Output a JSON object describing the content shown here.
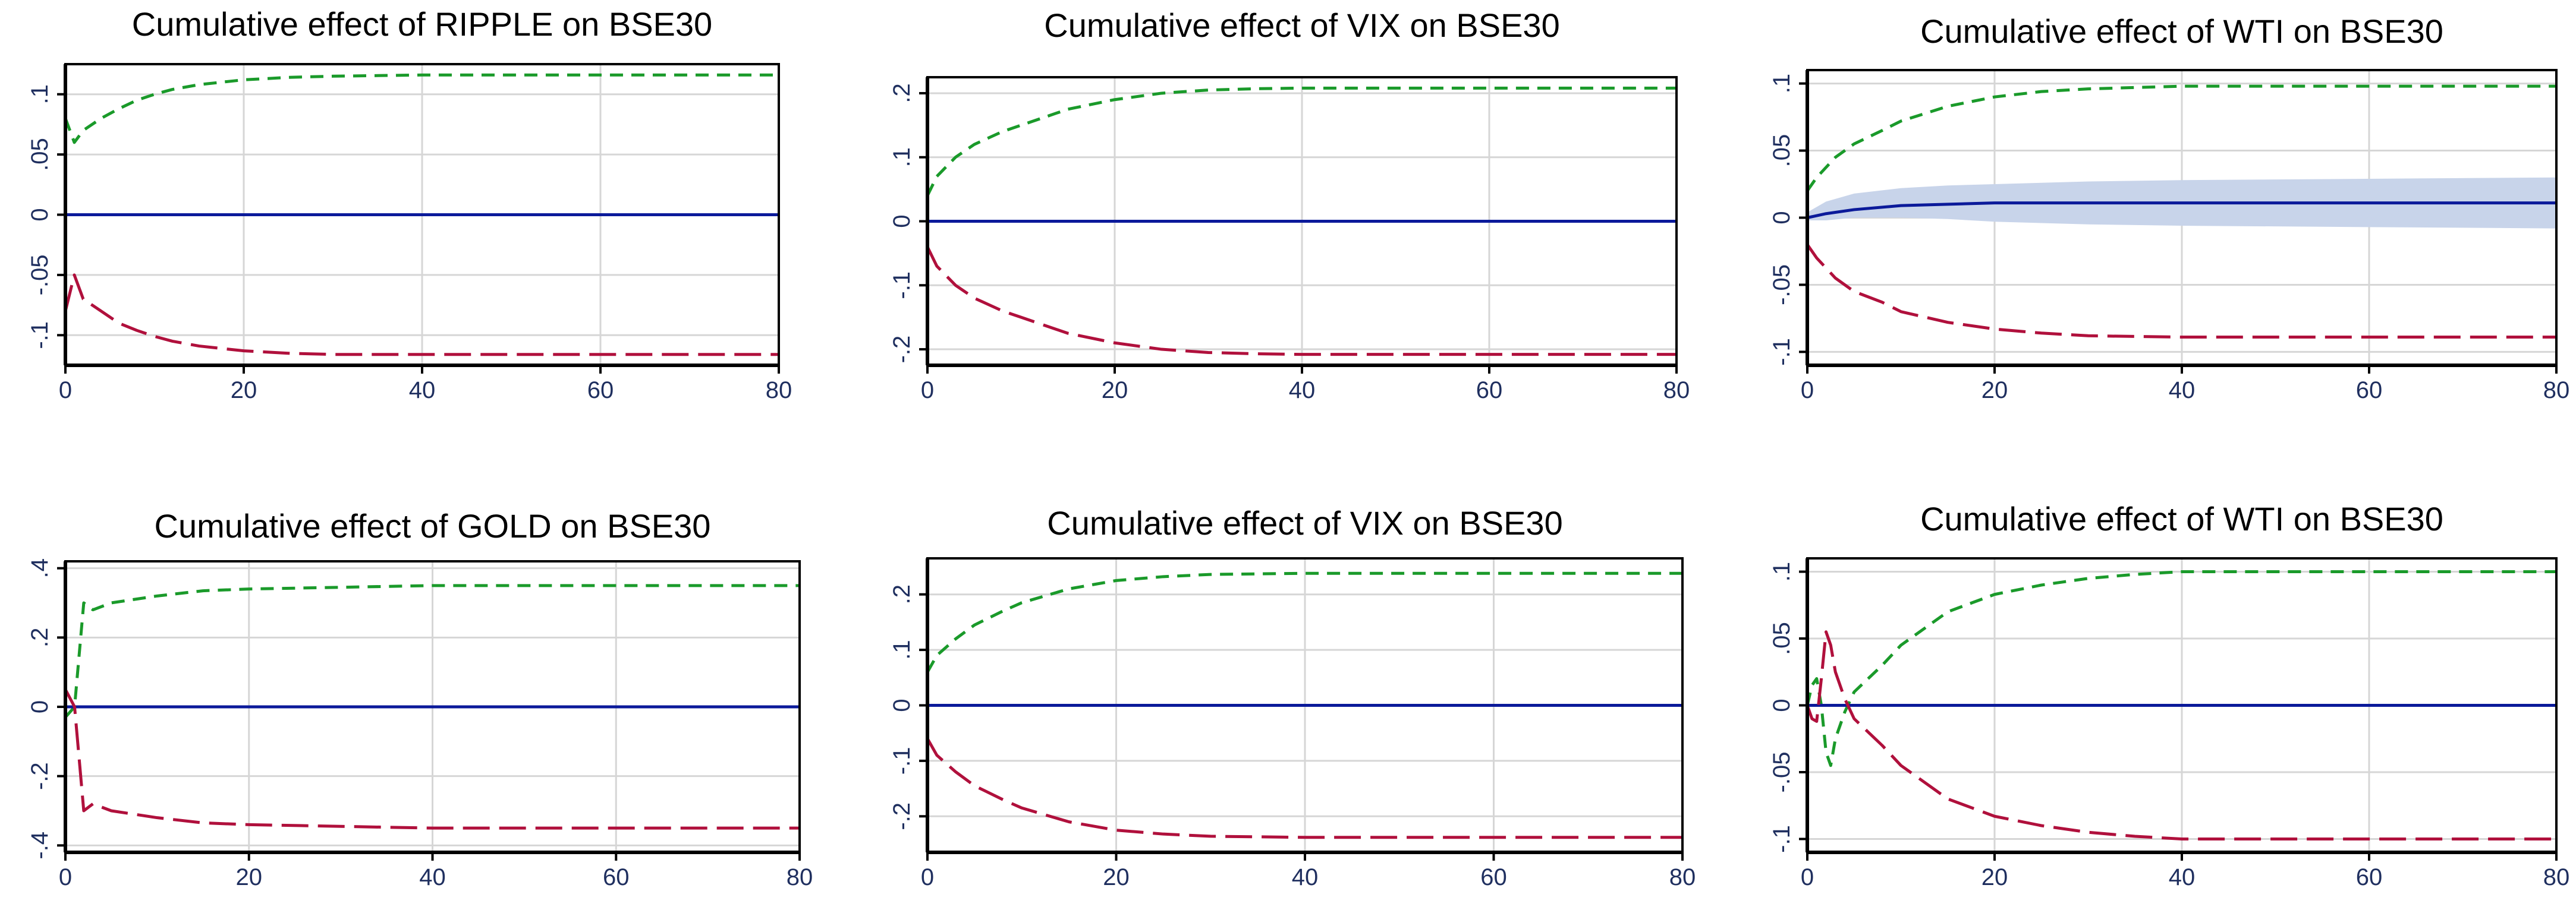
{
  "colors": {
    "estimate": "#0b1a9a",
    "upper_band": "#1a9a2a",
    "lower_band": "#b0103c",
    "shaded_ci": "#c8d4ea",
    "grid": "#d6d6d6"
  },
  "chart_data": [
    {
      "type": "line",
      "title": "Cumulative effect of RIPPLE on BSE30",
      "xlim": [
        0,
        80
      ],
      "ylim": [
        -0.125,
        0.125
      ],
      "xticks": [
        0,
        20,
        40,
        60,
        80
      ],
      "xtick_labels": [
        "0",
        "20",
        "40",
        "60",
        "80"
      ],
      "yticks": [
        0.1,
        0.05,
        0,
        -0.05,
        -0.1
      ],
      "ytick_labels": [
        ".1",
        ".05",
        "0",
        "-.05",
        "-.1"
      ],
      "grid": true,
      "shaded_band": false,
      "series": [
        {
          "role": "upper",
          "style": "dashed",
          "x": [
            0,
            1,
            2,
            4,
            6,
            8,
            10,
            12,
            15,
            20,
            25,
            30,
            40,
            60,
            80
          ],
          "y": [
            0.08,
            0.06,
            0.07,
            0.08,
            0.088,
            0.095,
            0.1,
            0.104,
            0.108,
            0.112,
            0.114,
            0.115,
            0.116,
            0.116,
            0.116
          ]
        },
        {
          "role": "estimate",
          "style": "solid",
          "x": [
            0,
            80
          ],
          "y": [
            0,
            0
          ]
        },
        {
          "role": "lower",
          "style": "dashed",
          "x": [
            0,
            1,
            2,
            4,
            6,
            8,
            10,
            12,
            15,
            20,
            25,
            30,
            40,
            60,
            80
          ],
          "y": [
            -0.08,
            -0.05,
            -0.07,
            -0.08,
            -0.09,
            -0.096,
            -0.101,
            -0.105,
            -0.109,
            -0.113,
            -0.115,
            -0.116,
            -0.116,
            -0.116,
            -0.116
          ]
        }
      ]
    },
    {
      "type": "line",
      "title": "Cumulative effect of VIX on BSE30",
      "xlim": [
        0,
        80
      ],
      "ylim": [
        -0.225,
        0.225
      ],
      "xticks": [
        0,
        20,
        40,
        60,
        80
      ],
      "xtick_labels": [
        "0",
        "20",
        "40",
        "60",
        "80"
      ],
      "yticks": [
        0.2,
        0.1,
        0,
        -0.1,
        -0.2
      ],
      "ytick_labels": [
        ".2",
        ".1",
        "0",
        "-.1",
        "-.2"
      ],
      "grid": true,
      "shaded_band": false,
      "series": [
        {
          "role": "upper",
          "style": "dashed",
          "x": [
            0,
            1,
            3,
            5,
            8,
            10,
            15,
            20,
            25,
            30,
            35,
            40,
            60,
            80
          ],
          "y": [
            0.04,
            0.07,
            0.1,
            0.12,
            0.14,
            0.15,
            0.175,
            0.19,
            0.2,
            0.205,
            0.207,
            0.208,
            0.208,
            0.208
          ]
        },
        {
          "role": "estimate",
          "style": "solid",
          "x": [
            0,
            80
          ],
          "y": [
            0,
            0
          ]
        },
        {
          "role": "lower",
          "style": "dashed",
          "x": [
            0,
            1,
            3,
            5,
            8,
            10,
            15,
            20,
            25,
            30,
            35,
            40,
            60,
            80
          ],
          "y": [
            -0.04,
            -0.07,
            -0.1,
            -0.12,
            -0.14,
            -0.15,
            -0.175,
            -0.19,
            -0.2,
            -0.205,
            -0.207,
            -0.208,
            -0.208,
            -0.208
          ]
        }
      ]
    },
    {
      "type": "line",
      "title": "Cumulative effect of WTI on BSE30",
      "xlim": [
        0,
        80
      ],
      "ylim": [
        -0.11,
        0.11
      ],
      "xticks": [
        0,
        20,
        40,
        60,
        80
      ],
      "xtick_labels": [
        "0",
        "20",
        "40",
        "60",
        "80"
      ],
      "yticks": [
        0.1,
        0.05,
        0,
        -0.05,
        -0.1
      ],
      "ytick_labels": [
        ".1",
        ".05",
        "0",
        "-.05",
        "-.1"
      ],
      "grid": true,
      "shaded_band": true,
      "band": {
        "x": [
          0,
          2,
          5,
          10,
          15,
          20,
          30,
          40,
          60,
          80
        ],
        "upper": [
          0.004,
          0.012,
          0.018,
          0.022,
          0.024,
          0.025,
          0.027,
          0.028,
          0.029,
          0.03
        ],
        "lower": [
          -0.002,
          -0.002,
          0,
          0,
          -0.001,
          -0.003,
          -0.005,
          -0.006,
          -0.007,
          -0.008
        ]
      },
      "series": [
        {
          "role": "upper",
          "style": "dashed",
          "x": [
            0,
            1,
            3,
            5,
            8,
            10,
            15,
            20,
            25,
            30,
            40,
            60,
            80
          ],
          "y": [
            0.02,
            0.03,
            0.045,
            0.055,
            0.065,
            0.072,
            0.083,
            0.09,
            0.094,
            0.096,
            0.098,
            0.098,
            0.098
          ]
        },
        {
          "role": "estimate",
          "style": "solid",
          "x": [
            0,
            2,
            5,
            10,
            15,
            20,
            40,
            60,
            80
          ],
          "y": [
            0,
            0.003,
            0.006,
            0.009,
            0.01,
            0.011,
            0.011,
            0.011,
            0.011
          ]
        },
        {
          "role": "lower",
          "style": "dashed",
          "x": [
            0,
            1,
            3,
            5,
            8,
            10,
            15,
            20,
            25,
            30,
            40,
            60,
            80
          ],
          "y": [
            -0.02,
            -0.03,
            -0.045,
            -0.055,
            -0.063,
            -0.07,
            -0.078,
            -0.083,
            -0.086,
            -0.088,
            -0.089,
            -0.089,
            -0.089
          ]
        }
      ]
    },
    {
      "type": "line",
      "title": "Cumulative effect of GOLD on BSE30",
      "xlim": [
        0,
        80
      ],
      "ylim": [
        -0.42,
        0.42
      ],
      "xticks": [
        0,
        20,
        40,
        60,
        80
      ],
      "xtick_labels": [
        "0",
        "20",
        "40",
        "60",
        "80"
      ],
      "yticks": [
        0.4,
        0.2,
        0,
        -0.2,
        -0.4
      ],
      "ytick_labels": [
        ".4",
        ".2",
        "0",
        "-.2",
        "-.4"
      ],
      "grid": true,
      "shaded_band": false,
      "series": [
        {
          "role": "upper",
          "style": "dashed",
          "x": [
            0,
            1,
            1.5,
            2,
            3,
            5,
            10,
            15,
            20,
            30,
            40,
            60,
            80
          ],
          "y": [
            -0.03,
            0.0,
            0.15,
            0.3,
            0.28,
            0.3,
            0.32,
            0.335,
            0.34,
            0.345,
            0.35,
            0.35,
            0.35
          ]
        },
        {
          "role": "estimate",
          "style": "solid",
          "x": [
            0,
            80
          ],
          "y": [
            0,
            0
          ]
        },
        {
          "role": "lower",
          "style": "dashed",
          "x": [
            0,
            1,
            1.5,
            2,
            3,
            5,
            10,
            15,
            20,
            30,
            40,
            60,
            80
          ],
          "y": [
            0.05,
            0.0,
            -0.15,
            -0.3,
            -0.28,
            -0.3,
            -0.32,
            -0.335,
            -0.34,
            -0.345,
            -0.35,
            -0.35,
            -0.35
          ]
        }
      ]
    },
    {
      "type": "line",
      "title": "Cumulative effect of VIX on BSE30",
      "xlim": [
        0,
        80
      ],
      "ylim": [
        -0.265,
        0.265
      ],
      "xticks": [
        0,
        20,
        40,
        60,
        80
      ],
      "xtick_labels": [
        "0",
        "20",
        "40",
        "60",
        "80"
      ],
      "yticks": [
        0.2,
        0.1,
        0,
        -0.1,
        -0.2
      ],
      "ytick_labels": [
        ".2",
        ".1",
        "0",
        "-.1",
        "-.2"
      ],
      "grid": true,
      "shaded_band": false,
      "series": [
        {
          "role": "upper",
          "style": "dashed",
          "x": [
            0,
            1,
            3,
            5,
            8,
            10,
            15,
            20,
            25,
            30,
            40,
            60,
            80
          ],
          "y": [
            0.06,
            0.09,
            0.12,
            0.145,
            0.17,
            0.185,
            0.21,
            0.225,
            0.232,
            0.236,
            0.238,
            0.238,
            0.238
          ]
        },
        {
          "role": "estimate",
          "style": "solid",
          "x": [
            0,
            80
          ],
          "y": [
            0,
            0
          ]
        },
        {
          "role": "lower",
          "style": "dashed",
          "x": [
            0,
            1,
            3,
            5,
            8,
            10,
            15,
            20,
            25,
            30,
            40,
            60,
            80
          ],
          "y": [
            -0.06,
            -0.09,
            -0.12,
            -0.145,
            -0.17,
            -0.185,
            -0.21,
            -0.225,
            -0.232,
            -0.236,
            -0.238,
            -0.238,
            -0.238
          ]
        }
      ]
    },
    {
      "type": "line",
      "title": "Cumulative effect of WTI on BSE30",
      "xlim": [
        0,
        80
      ],
      "ylim": [
        -0.11,
        0.11
      ],
      "xticks": [
        0,
        20,
        40,
        60,
        80
      ],
      "xtick_labels": [
        "0",
        "20",
        "40",
        "60",
        "80"
      ],
      "yticks": [
        0.1,
        0.05,
        0,
        -0.05,
        -0.1
      ],
      "ytick_labels": [
        ".1",
        ".05",
        "0",
        "-.05",
        "-.1"
      ],
      "grid": true,
      "shaded_band": false,
      "series": [
        {
          "role": "upper",
          "style": "dashed",
          "x": [
            0,
            0.5,
            1,
            1.5,
            2,
            2.5,
            3,
            4,
            5,
            8,
            10,
            15,
            20,
            25,
            30,
            35,
            40,
            60,
            80
          ],
          "y": [
            0,
            0.015,
            0.02,
            0.0,
            -0.035,
            -0.045,
            -0.025,
            -0.005,
            0.01,
            0.03,
            0.045,
            0.07,
            0.083,
            0.09,
            0.095,
            0.098,
            0.1,
            0.1,
            0.1
          ]
        },
        {
          "role": "estimate",
          "style": "solid",
          "x": [
            0,
            80
          ],
          "y": [
            0,
            0
          ]
        },
        {
          "role": "lower",
          "style": "dashed",
          "x": [
            0,
            0.5,
            1,
            1.5,
            2,
            2.5,
            3,
            4,
            5,
            8,
            10,
            15,
            20,
            25,
            30,
            35,
            40,
            60,
            80
          ],
          "y": [
            0,
            -0.01,
            -0.012,
            0.02,
            0.055,
            0.045,
            0.025,
            0.005,
            -0.01,
            -0.03,
            -0.045,
            -0.07,
            -0.083,
            -0.09,
            -0.095,
            -0.098,
            -0.1,
            -0.1,
            -0.1
          ]
        }
      ]
    }
  ]
}
